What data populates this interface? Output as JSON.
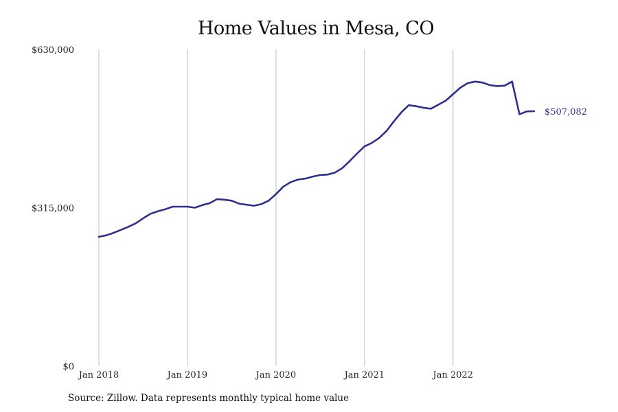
{
  "colors": {
    "line": "#2e2e8f",
    "grid": "#bdbdbd"
  },
  "title": "Home Values in Mesa, CO",
  "source": "Source: Zillow. Data represents monthly typical home value",
  "chart_data": {
    "type": "line",
    "title": "Home Values in Mesa, CO",
    "xlabel": "",
    "ylabel": "",
    "x_ticks": [
      "Jan 2018",
      "Jan 2019",
      "Jan 2020",
      "Jan 2021",
      "Jan 2022"
    ],
    "y_ticks": [
      "$0",
      "$315,000",
      "$630,000"
    ],
    "y_tick_values": [
      0,
      315000,
      630000
    ],
    "ylim": [
      0,
      630000
    ],
    "x_range": [
      "Jan 2018",
      "Dec 2022"
    ],
    "grid": "vertical lines at each January",
    "end_label": "$507,082",
    "series": [
      {
        "x": [
          "2018-01",
          "2018-02",
          "2018-03",
          "2018-04",
          "2018-05",
          "2018-06",
          "2018-07",
          "2018-08",
          "2018-09",
          "2018-10",
          "2018-11",
          "2018-12",
          "2019-01",
          "2019-02",
          "2019-03",
          "2019-04",
          "2019-05",
          "2019-06",
          "2019-07",
          "2019-08",
          "2019-09",
          "2019-10",
          "2019-11",
          "2019-12",
          "2020-01",
          "2020-02",
          "2020-03",
          "2020-04",
          "2020-05",
          "2020-06",
          "2020-07",
          "2020-08",
          "2020-09",
          "2020-10",
          "2020-11",
          "2020-12",
          "2021-01",
          "2021-02",
          "2021-03",
          "2021-04",
          "2021-05",
          "2021-06",
          "2021-07",
          "2021-08",
          "2021-09",
          "2021-10",
          "2021-11",
          "2021-12",
          "2022-01",
          "2022-02",
          "2022-03",
          "2022-04",
          "2022-05",
          "2022-06",
          "2022-07",
          "2022-08",
          "2022-09",
          "2022-10",
          "2022-11",
          "2022-12"
        ],
        "values": [
          257000,
          260000,
          265000,
          271000,
          277000,
          284000,
          294000,
          303000,
          308000,
          312000,
          317000,
          317000,
          317000,
          315000,
          320000,
          324000,
          332000,
          331000,
          329000,
          323000,
          321000,
          319000,
          322000,
          329000,
          342000,
          357000,
          366000,
          371000,
          373000,
          377000,
          380000,
          381000,
          385000,
          394000,
          408000,
          423000,
          437000,
          444000,
          454000,
          468000,
          487000,
          505000,
          519000,
          517000,
          514000,
          512000,
          520000,
          528000,
          541000,
          554000,
          563000,
          566000,
          564000,
          559000,
          557000,
          558000,
          566000,
          567082,
          507082,
          507082
        ]
      }
    ]
  }
}
